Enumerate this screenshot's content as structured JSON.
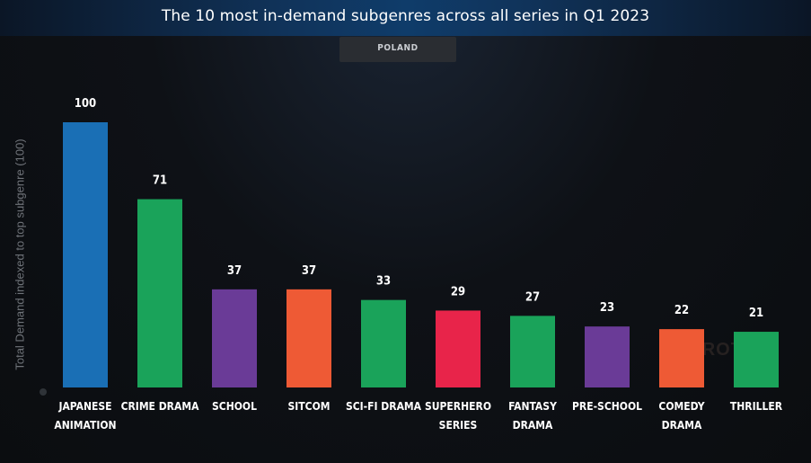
{
  "header": {
    "title": "The 10 most in-demand subgenres across all series in Q1 2023",
    "badge": "POLAND"
  },
  "watermark": "PARROT",
  "chart_data": {
    "type": "bar",
    "title": "The 10 most in-demand subgenres across all series in Q1 2023",
    "subtitle": "POLAND",
    "ylabel": "Total Demand indexed to top subgenre (100)",
    "xlabel": "",
    "ylim": [
      0,
      100
    ],
    "grid": false,
    "categories": [
      "JAPANESE ANIMATION",
      "CRIME DRAMA",
      "SCHOOL",
      "SITCOM",
      "SCI-FI DRAMA",
      "SUPERHERO SERIES",
      "FANTASY DRAMA",
      "PRE-SCHOOL",
      "COMEDY DRAMA",
      "THRILLER"
    ],
    "category_lines": [
      [
        "JAPANESE",
        "ANIMATION"
      ],
      [
        "CRIME DRAMA"
      ],
      [
        "SCHOOL"
      ],
      [
        "SITCOM"
      ],
      [
        "SCI-FI DRAMA"
      ],
      [
        "SUPERHERO",
        "SERIES"
      ],
      [
        "FANTASY",
        "DRAMA"
      ],
      [
        "PRE-SCHOOL"
      ],
      [
        "COMEDY",
        "DRAMA"
      ],
      [
        "THRILLER"
      ]
    ],
    "values": [
      100,
      71,
      37,
      37,
      33,
      29,
      27,
      23,
      22,
      21
    ],
    "colors": [
      "#1a6fb5",
      "#1aa35a",
      "#6a3b97",
      "#ee5a35",
      "#1aa35a",
      "#e8244a",
      "#1aa35a",
      "#6a3b97",
      "#ee5a35",
      "#1aa35a"
    ]
  }
}
